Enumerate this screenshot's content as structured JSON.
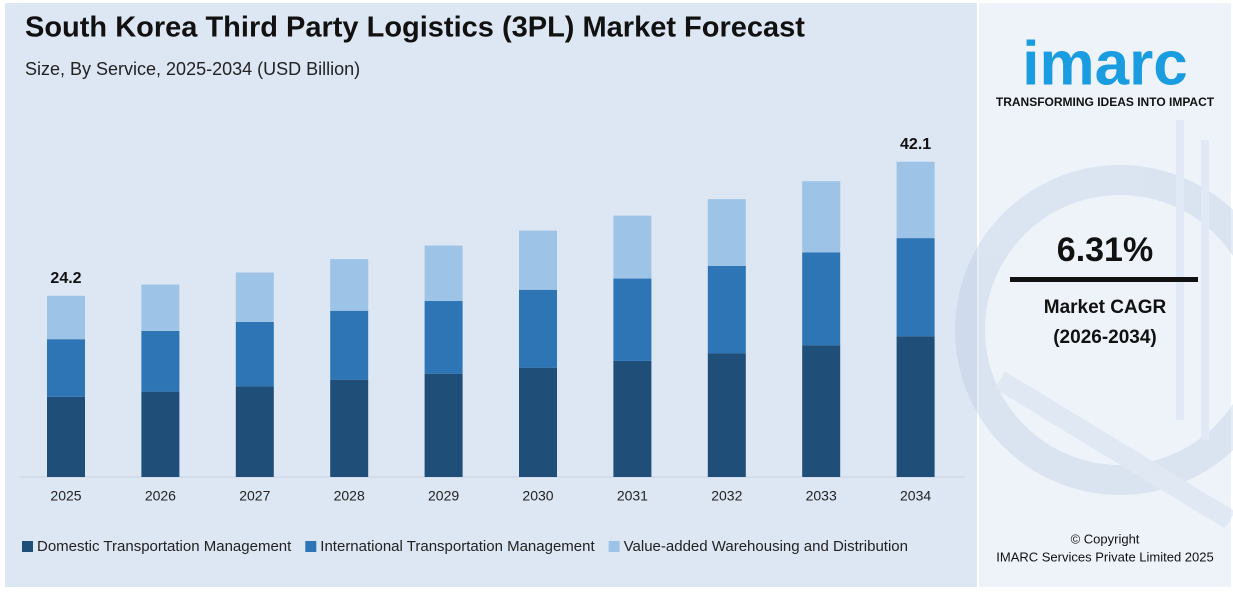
{
  "chart_data": {
    "type": "bar",
    "stacked": true,
    "title": "South Korea Third Party Logistics (3PL) Market Forecast",
    "subtitle": "Size, By Service, 2025-2034 (USD Billion)",
    "categories": [
      "2025",
      "2026",
      "2027",
      "2028",
      "2029",
      "2030",
      "2031",
      "2032",
      "2033",
      "2034"
    ],
    "series": [
      {
        "name": "Domestic Transportation Management",
        "color": "#1f4e79",
        "values": [
          10.7,
          11.4,
          12.1,
          13.0,
          13.8,
          14.6,
          15.5,
          16.5,
          17.6,
          18.8
        ]
      },
      {
        "name": "International Transportation Management",
        "color": "#2e75b6",
        "values": [
          7.7,
          8.1,
          8.6,
          9.2,
          9.7,
          10.4,
          11.0,
          11.7,
          12.4,
          13.1
        ]
      },
      {
        "name": "Value-added Warehousing and Distribution",
        "color": "#9dc3e6",
        "values": [
          5.8,
          6.2,
          6.6,
          6.9,
          7.4,
          7.9,
          8.4,
          8.9,
          9.5,
          10.2
        ]
      }
    ],
    "totals": [
      24.2,
      null,
      null,
      null,
      null,
      null,
      null,
      null,
      null,
      42.1
    ],
    "ylim": [
      0,
      45
    ],
    "legend": "bottom"
  },
  "sidebar": {
    "logo": "imarc",
    "tagline": "TRANSFORMING IDEAS INTO IMPACT",
    "cagr": "6.31%",
    "cagr_label": "Market CAGR",
    "cagr_period": "(2026-2034)",
    "copyright": "© Copyright",
    "company": "IMARC Services Private Limited 2025"
  }
}
